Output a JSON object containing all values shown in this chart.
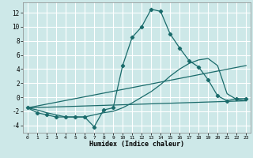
{
  "xlabel": "Humidex (Indice chaleur)",
  "xlim": [
    -0.5,
    23.5
  ],
  "ylim": [
    -5,
    13.5
  ],
  "yticks": [
    -4,
    -2,
    0,
    2,
    4,
    6,
    8,
    10,
    12
  ],
  "xticks": [
    0,
    1,
    2,
    3,
    4,
    5,
    6,
    7,
    8,
    9,
    10,
    11,
    12,
    13,
    14,
    15,
    16,
    17,
    18,
    19,
    20,
    21,
    22,
    23
  ],
  "bg_color": "#cde8e8",
  "grid_color": "#b0d4d4",
  "line_color": "#1a6b6b",
  "curve1_x": [
    0,
    1,
    2,
    3,
    4,
    5,
    6,
    7,
    8,
    9,
    10,
    11,
    12,
    13,
    14,
    15,
    16,
    17,
    18,
    19,
    20,
    21,
    22,
    23
  ],
  "curve1_y": [
    -1.5,
    -2.2,
    -2.5,
    -2.8,
    -2.8,
    -2.8,
    -2.8,
    -4.2,
    -1.8,
    -1.5,
    4.5,
    8.5,
    10.0,
    12.5,
    12.2,
    9.0,
    7.0,
    5.2,
    4.3,
    2.5,
    0.2,
    -0.5,
    -0.2,
    -0.2
  ],
  "curve2_x": [
    0,
    1,
    2,
    3,
    4,
    5,
    6,
    7,
    8,
    9,
    10,
    11,
    12,
    13,
    14,
    15,
    16,
    17,
    18,
    19,
    20,
    21,
    22,
    23
  ],
  "curve2_y": [
    -1.5,
    -1.8,
    -2.2,
    -2.5,
    -2.8,
    -2.8,
    -2.8,
    -2.5,
    -2.2,
    -2.0,
    -1.5,
    -0.8,
    0.0,
    0.8,
    1.8,
    3.0,
    4.0,
    4.8,
    5.3,
    5.5,
    4.5,
    0.5,
    -0.3,
    -0.5
  ],
  "line1_x": [
    0,
    23
  ],
  "line1_y": [
    -1.5,
    -0.5
  ],
  "line2_x": [
    0,
    23
  ],
  "line2_y": [
    -1.5,
    4.5
  ]
}
